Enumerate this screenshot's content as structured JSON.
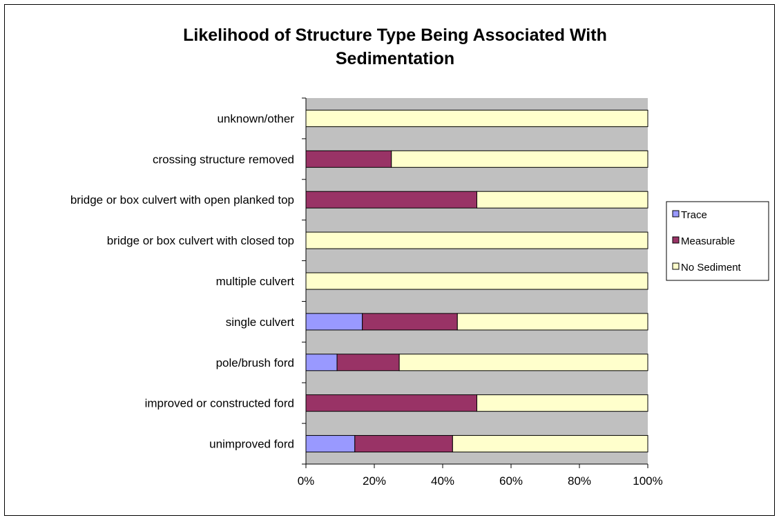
{
  "chart_data": {
    "type": "bar",
    "orientation": "horizontal",
    "stacked": "percent",
    "title": "Likelihood of Structure Type Being Associated With Sedimentation",
    "title_lines": [
      "Likelihood of Structure Type Being Associated With",
      "Sedimentation"
    ],
    "categories": [
      "unknown/other",
      "crossing structure removed",
      "bridge or box culvert with open planked top",
      "bridge or box culvert with closed top",
      "multiple culvert",
      "single culvert",
      "pole/brush ford",
      "improved or constructed ford",
      "unimproved ford"
    ],
    "series": [
      {
        "name": "Trace",
        "color": "#9999ff",
        "values": [
          0,
          0,
          0,
          0,
          0,
          16.5,
          9.1,
          0,
          14.3
        ]
      },
      {
        "name": "Measurable",
        "color": "#993366",
        "values": [
          0,
          25,
          50,
          0,
          0,
          27.8,
          18.2,
          50,
          28.6
        ]
      },
      {
        "name": "No Sediment",
        "color": "#ffffcc",
        "values": [
          100,
          75,
          50,
          100,
          100,
          55.7,
          72.7,
          50,
          57.1
        ]
      }
    ],
    "xlim": [
      0,
      100
    ],
    "x_ticks": [
      "0%",
      "20%",
      "40%",
      "60%",
      "80%",
      "100%"
    ],
    "xlabel": "",
    "ylabel": "",
    "grid": false,
    "plot_background": "#c0c0c0",
    "legend_position": "right"
  }
}
